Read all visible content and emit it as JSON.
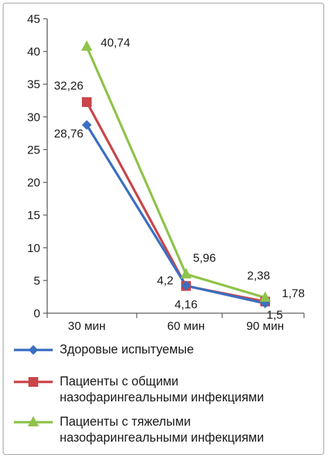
{
  "chart_data": {
    "type": "line",
    "categories": [
      "30 мин",
      "60 мин",
      "90 мин"
    ],
    "ylim": [
      0,
      45
    ],
    "yticks": [
      "0",
      "5",
      "10",
      "15",
      "20",
      "25",
      "30",
      "35",
      "40",
      "45"
    ],
    "grid": false,
    "legend_position": "bottom",
    "series": [
      {
        "name": "Здоровые испытуемые",
        "values": [
          28.76,
          4.2,
          1.5
        ],
        "labels": [
          "28,76",
          "4,2",
          "1,5"
        ],
        "color": "#3b6fc1",
        "marker": "diamond"
      },
      {
        "name": "Пациенты с общими\nназофарингеальными инфекциями",
        "values": [
          32.26,
          4.16,
          1.78
        ],
        "labels": [
          "32,26",
          "4,16",
          "1,78"
        ],
        "color": "#c9454a",
        "marker": "square"
      },
      {
        "name": "Пациенты с тяжелыми\nназофарингеальными инфекциями",
        "values": [
          40.74,
          5.96,
          2.38
        ],
        "labels": [
          "40,74",
          "5,96",
          "2,38"
        ],
        "color": "#8fc34a",
        "marker": "triangle"
      }
    ]
  }
}
